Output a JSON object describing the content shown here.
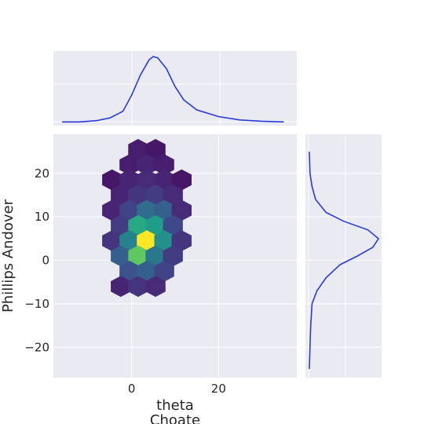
{
  "chart_data": {
    "type": "hexbin-joint",
    "xlabel_lines": [
      "theta",
      "Choate"
    ],
    "ylabel": "Phillips Andover",
    "x_ticks": [
      0,
      20
    ],
    "x_tick_labels": [
      "0",
      "20"
    ],
    "y_ticks": [
      20,
      10,
      0,
      -10,
      -20
    ],
    "y_tick_labels": [
      "20",
      "10",
      "0",
      "−10",
      "−20"
    ],
    "xlim": [
      -18,
      38
    ],
    "ylim": [
      -27,
      29
    ],
    "grid": true,
    "colormap": "viridis",
    "colors": {
      "background": "#eaeaf2",
      "grid": "#ffffff",
      "kde_line": "#2a3bd8",
      "text": "#262626"
    },
    "hexbins": [
      {
        "x": 1.5,
        "y": 25.5,
        "level": 0.08
      },
      {
        "x": 5.5,
        "y": 25.5,
        "level": 0.06
      },
      {
        "x": -0.5,
        "y": 22,
        "level": 0.08
      },
      {
        "x": 3.5,
        "y": 22,
        "level": 0.1
      },
      {
        "x": 7.5,
        "y": 22,
        "level": 0.08
      },
      {
        "x": -4.5,
        "y": 18.5,
        "level": 0.06
      },
      {
        "x": -0.5,
        "y": 18.5,
        "level": 0.1
      },
      {
        "x": 3.5,
        "y": 18.5,
        "level": 0.12
      },
      {
        "x": 7.5,
        "y": 18.5,
        "level": 0.1
      },
      {
        "x": 11.5,
        "y": 18.5,
        "level": 0.06
      },
      {
        "x": -2.5,
        "y": 15,
        "level": 0.1
      },
      {
        "x": 1.5,
        "y": 15,
        "level": 0.15
      },
      {
        "x": 5.5,
        "y": 15,
        "level": 0.18
      },
      {
        "x": 9.5,
        "y": 15,
        "level": 0.12
      },
      {
        "x": -4.5,
        "y": 11.5,
        "level": 0.1
      },
      {
        "x": -0.5,
        "y": 11.5,
        "level": 0.2
      },
      {
        "x": 3.5,
        "y": 11.5,
        "level": 0.35
      },
      {
        "x": 7.5,
        "y": 11.5,
        "level": 0.3
      },
      {
        "x": 11.5,
        "y": 11.5,
        "level": 0.12
      },
      {
        "x": -2.5,
        "y": 8,
        "level": 0.18
      },
      {
        "x": 1.5,
        "y": 8,
        "level": 0.6
      },
      {
        "x": 5.5,
        "y": 8,
        "level": 0.55
      },
      {
        "x": 9.5,
        "y": 8,
        "level": 0.22
      },
      {
        "x": -4.5,
        "y": 4.5,
        "level": 0.15
      },
      {
        "x": -0.5,
        "y": 4.5,
        "level": 0.45
      },
      {
        "x": 3.5,
        "y": 4.5,
        "level": 1.0
      },
      {
        "x": 7.5,
        "y": 4.5,
        "level": 0.5
      },
      {
        "x": 11.5,
        "y": 4.5,
        "level": 0.15
      },
      {
        "x": -2.5,
        "y": 1,
        "level": 0.3
      },
      {
        "x": 1.5,
        "y": 1,
        "level": 0.75
      },
      {
        "x": 5.5,
        "y": 1,
        "level": 0.4
      },
      {
        "x": 9.5,
        "y": 1,
        "level": 0.18
      },
      {
        "x": -0.5,
        "y": -2.5,
        "level": 0.25
      },
      {
        "x": 3.5,
        "y": -2.5,
        "level": 0.3
      },
      {
        "x": 7.5,
        "y": -2.5,
        "level": 0.2
      },
      {
        "x": -2.5,
        "y": -6,
        "level": 0.1
      },
      {
        "x": 1.5,
        "y": -6,
        "level": 0.15
      },
      {
        "x": 5.5,
        "y": -6,
        "level": 0.12
      }
    ],
    "kde_x": {
      "x": [
        -16,
        -12,
        -8,
        -5,
        -2,
        0,
        2,
        4,
        5,
        6,
        8,
        10,
        12,
        15,
        20,
        25,
        30,
        35
      ],
      "density": [
        0.02,
        0.02,
        0.04,
        0.08,
        0.18,
        0.42,
        0.72,
        0.95,
        1.0,
        0.98,
        0.82,
        0.55,
        0.35,
        0.2,
        0.1,
        0.05,
        0.03,
        0.02
      ]
    },
    "kde_y": {
      "y": [
        -25,
        -20,
        -15,
        -10,
        -7,
        -4,
        -1,
        1,
        3,
        5,
        7,
        9,
        11,
        14,
        17,
        20,
        25
      ],
      "density": [
        0.01,
        0.02,
        0.03,
        0.05,
        0.12,
        0.25,
        0.45,
        0.7,
        0.92,
        1.0,
        0.85,
        0.5,
        0.25,
        0.1,
        0.05,
        0.02,
        0.01
      ]
    }
  }
}
